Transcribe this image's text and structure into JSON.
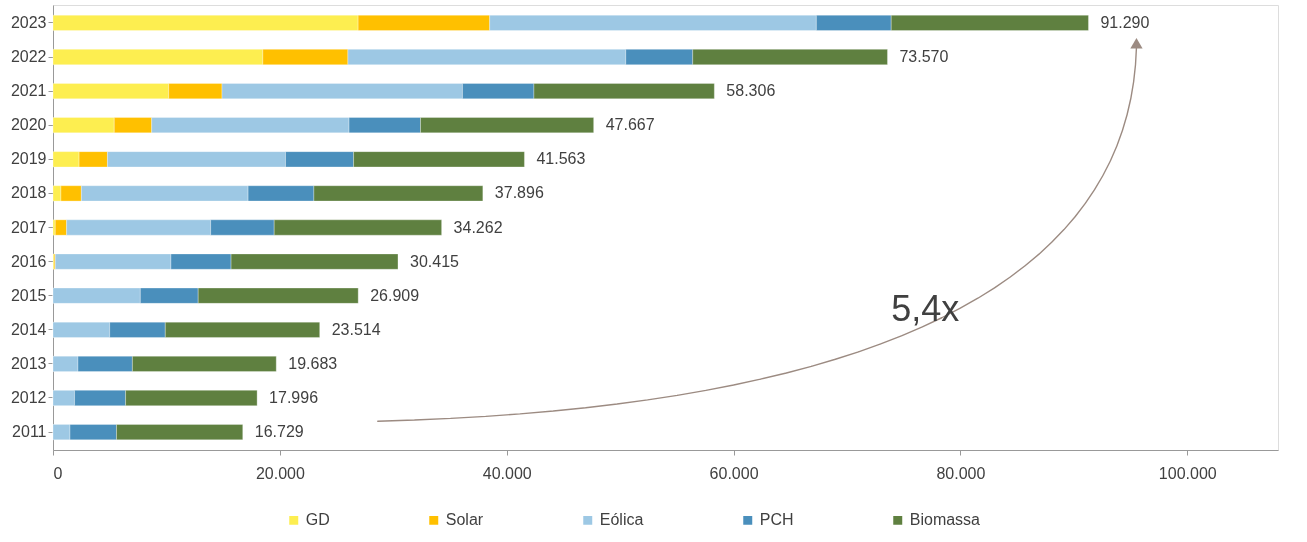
{
  "chart_data": {
    "type": "bar",
    "orientation": "horizontal",
    "stacked": true,
    "categories": [
      "2023",
      "2022",
      "2021",
      "2020",
      "2019",
      "2018",
      "2017",
      "2016",
      "2015",
      "2014",
      "2013",
      "2012",
      "2011"
    ],
    "series": [
      {
        "name": "GD",
        "color": "#fdee50",
        "values": [
          26900,
          18500,
          10200,
          5400,
          2300,
          700,
          200,
          100,
          0,
          0,
          0,
          0,
          0
        ]
      },
      {
        "name": "Solar",
        "color": "#ffc000",
        "values": [
          11600,
          7500,
          4700,
          3300,
          2500,
          1800,
          1000,
          100,
          0,
          0,
          0,
          0,
          0
        ]
      },
      {
        "name": "Eólica",
        "color": "#9dc8e4",
        "values": [
          28800,
          24500,
          21200,
          17400,
          15700,
          14700,
          12700,
          10200,
          7700,
          5000,
          2200,
          1900,
          1500
        ]
      },
      {
        "name": "PCH",
        "color": "#4a8fbc",
        "values": [
          6600,
          5900,
          6300,
          6300,
          6000,
          5800,
          5600,
          5300,
          5100,
          4900,
          4800,
          4500,
          4100
        ]
      },
      {
        "name": "Biomassa",
        "color": "#5f8040",
        "values": [
          17390,
          17170,
          15906,
          15267,
          15063,
          14896,
          14762,
          14715,
          14109,
          13614,
          12683,
          11596,
          11129
        ]
      }
    ],
    "totals": [
      "91.290",
      "73.570",
      "58.306",
      "47.667",
      "41.563",
      "37.896",
      "34.262",
      "30.415",
      "26.909",
      "23.514",
      "19.683",
      "17.996",
      "16.729"
    ],
    "xlim": [
      0,
      108000
    ],
    "xticks": [
      0,
      {
        "value": 20000,
        "label": "20.000"
      },
      {
        "value": 40000,
        "label": "40.000"
      },
      {
        "value": 60000,
        "label": "60.000"
      },
      {
        "value": 80000,
        "label": "80.000"
      },
      {
        "value": 100000,
        "label": "100.000"
      }
    ],
    "annotations": [
      "5,4x"
    ],
    "grid": false,
    "legend": "bottom"
  }
}
